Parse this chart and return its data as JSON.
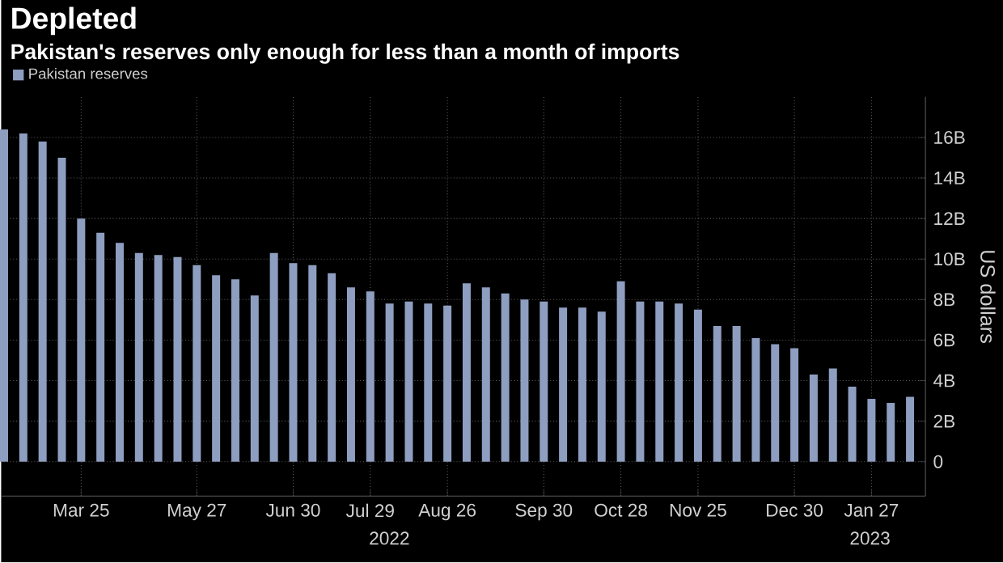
{
  "chart_data": {
    "type": "bar",
    "title": "Depleted",
    "subtitle": "Pakistan's reserves only enough for less than a month of imports",
    "categories": [
      null,
      null,
      null,
      null,
      "Mar 25",
      null,
      null,
      null,
      null,
      null,
      "May 27",
      null,
      null,
      null,
      null,
      "Jun 30",
      null,
      null,
      null,
      "Jul 29",
      null,
      null,
      null,
      "Aug 26",
      null,
      null,
      null,
      null,
      "Sep 30",
      null,
      null,
      null,
      "Oct 28",
      null,
      null,
      null,
      "Nov 25",
      null,
      null,
      null,
      null,
      "Dec 30",
      null,
      null,
      null,
      "Jan 27",
      null,
      null
    ],
    "series": [
      {
        "name": "Pakistan reserves",
        "color": "#8e9ec0",
        "values": [
          16.4,
          16.2,
          15.8,
          15.0,
          12.0,
          11.3,
          10.8,
          10.3,
          10.2,
          10.1,
          9.7,
          9.2,
          9.0,
          8.2,
          10.3,
          9.8,
          9.7,
          9.3,
          8.6,
          8.4,
          7.8,
          7.9,
          7.8,
          7.7,
          8.8,
          8.6,
          8.3,
          8.0,
          7.9,
          7.6,
          7.6,
          7.4,
          8.9,
          7.9,
          7.9,
          7.8,
          7.5,
          6.7,
          6.7,
          6.1,
          5.8,
          5.6,
          4.3,
          4.6,
          3.7,
          3.1,
          2.9,
          3.2
        ]
      }
    ],
    "ylabel": "US dollars",
    "ylim": [
      -1.7,
      18
    ],
    "yticks": [
      0,
      {
        "value": 2,
        "label": "2B"
      },
      {
        "value": 4,
        "label": "4B"
      },
      {
        "value": 6,
        "label": "6B"
      },
      {
        "value": 8,
        "label": "8B"
      },
      {
        "value": 10,
        "label": "10B"
      },
      {
        "value": 12,
        "label": "12B"
      },
      {
        "value": 14,
        "label": "14B"
      },
      {
        "value": 16,
        "label": "16B"
      }
    ],
    "annotations": [
      "2022",
      "2023"
    ],
    "grid": true,
    "legend": "top left"
  }
}
